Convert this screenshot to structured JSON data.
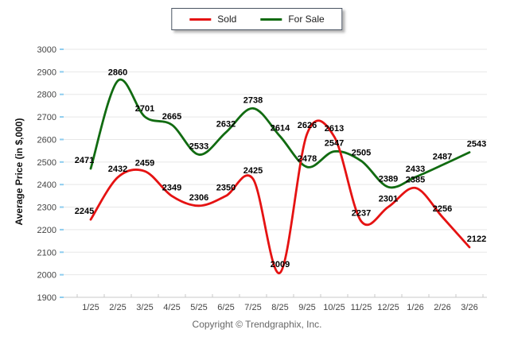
{
  "chart_data": {
    "type": "line",
    "categories": [
      "1/25",
      "2/25",
      "3/25",
      "4/25",
      "5/25",
      "6/25",
      "7/25",
      "8/25",
      "9/25",
      "10/25",
      "11/25",
      "12/25",
      "1/26",
      "2/26",
      "3/26"
    ],
    "series": [
      {
        "name": "Sold",
        "color": "#e51212",
        "values": [
          2245,
          2432,
          2459,
          2349,
          2306,
          2350,
          2425,
          2009,
          2626,
          2613,
          2237,
          2301,
          2385,
          2256,
          2122
        ]
      },
      {
        "name": "For Sale",
        "color": "#116b11",
        "values": [
          2471,
          2860,
          2701,
          2665,
          2533,
          2632,
          2738,
          2614,
          2478,
          2547,
          2505,
          2389,
          2433,
          2487,
          2543
        ]
      }
    ],
    "title": "",
    "xlabel": "",
    "ylabel": "Average Price (in $,000)",
    "ylim": [
      1900,
      3000
    ],
    "y_ticks": [
      1900,
      2000,
      2100,
      2200,
      2300,
      2400,
      2500,
      2600,
      2700,
      2800,
      2900,
      3000
    ],
    "grid": "horizontal",
    "legend_position": "top-center",
    "smooth": true
  },
  "colors": {
    "gridline": "#e7e7e7",
    "axis_line": "#c9c9c9",
    "y_tick_mark": "#8ecdef",
    "x_tick_mark": "#c9c9c9",
    "tick_label": "#444444",
    "data_label": "#000000"
  },
  "footer": {
    "copyright": "Copyright © Trendgraphix, Inc."
  }
}
